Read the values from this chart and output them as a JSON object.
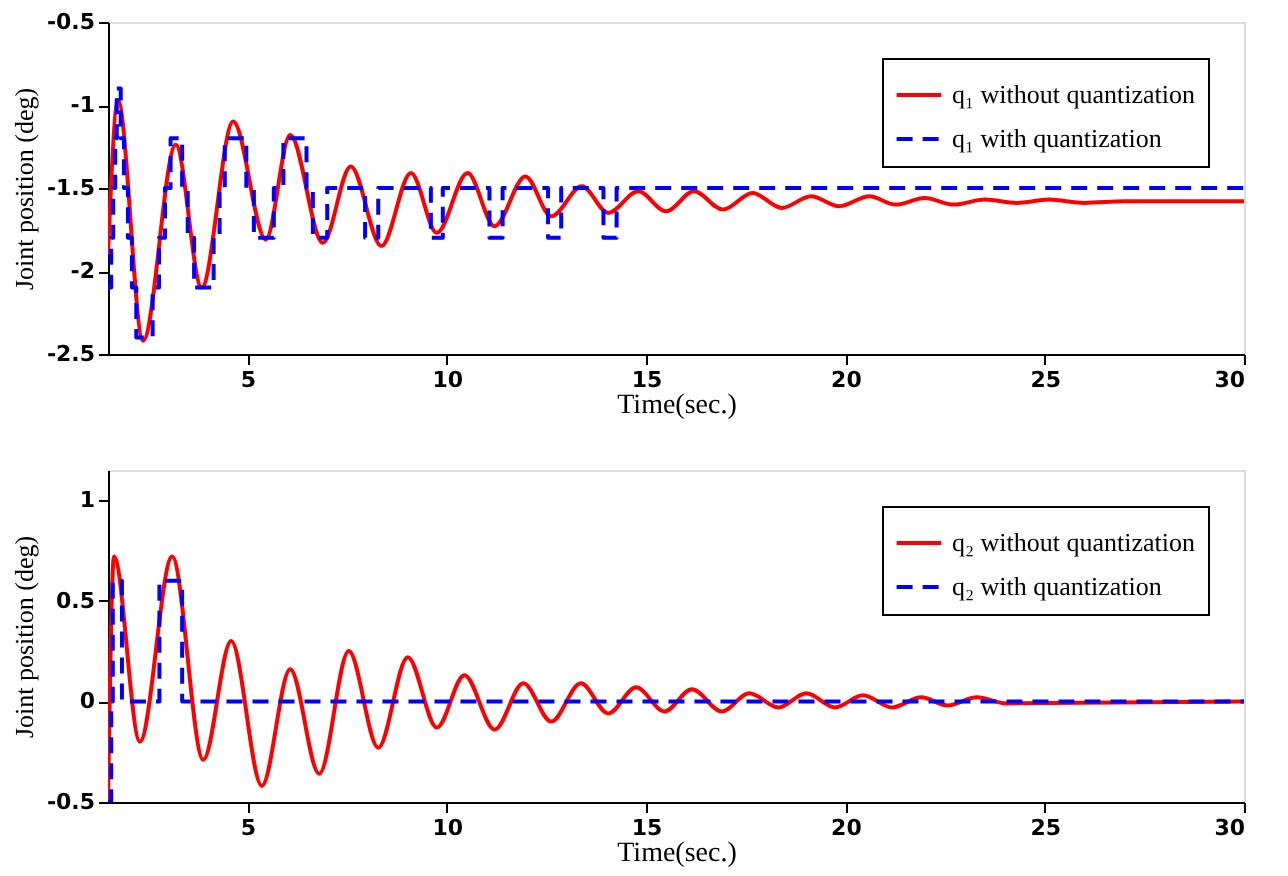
{
  "chart_data": [
    {
      "type": "line",
      "xlabel": "Time(sec.)",
      "ylabel": "Joint position (deg)",
      "xlim": [
        1.5,
        30
      ],
      "xticks": [
        5,
        10,
        15,
        20,
        25,
        30
      ],
      "ylim": [
        -2.5,
        -0.5
      ],
      "yticks": [
        -2.5,
        -2,
        -1.5,
        -1,
        -0.5
      ],
      "grid": false,
      "legend": "top right",
      "marker": "none",
      "series": [
        {
          "name": "q₁ without quantization",
          "color": "#ff0000",
          "line_style": "solid",
          "x": [
            1.5,
            1.75,
            2.38,
            3.2,
            3.85,
            4.64,
            5.46,
            6.07,
            6.89,
            7.59,
            8.36,
            9.1,
            9.75,
            10.52,
            11.2,
            11.97,
            12.62,
            13.39,
            14.05,
            14.8,
            15.5,
            16.2,
            16.93,
            17.67,
            18.4,
            19.14,
            19.84,
            20.6,
            21.26,
            21.99,
            22.72,
            23.5,
            24.3,
            25.1,
            26,
            27,
            28,
            29,
            30
          ],
          "values": [
            -1.9,
            -0.97,
            -2.42,
            -1.24,
            -2.1,
            -1.1,
            -1.81,
            -1.18,
            -1.83,
            -1.37,
            -1.85,
            -1.41,
            -1.77,
            -1.41,
            -1.73,
            -1.43,
            -1.67,
            -1.49,
            -1.65,
            -1.52,
            -1.64,
            -1.52,
            -1.63,
            -1.53,
            -1.62,
            -1.55,
            -1.61,
            -1.55,
            -1.6,
            -1.56,
            -1.6,
            -1.57,
            -1.59,
            -1.57,
            -1.59,
            -1.58,
            -1.58,
            -1.58,
            -1.58
          ]
        },
        {
          "name": "q₁ with quantization",
          "color": "#0000ff",
          "line_style": "dashed",
          "type": "step",
          "x": [
            1.5,
            1.58,
            1.63,
            1.68,
            1.72,
            1.82,
            1.9,
            2.0,
            2.1,
            2.21,
            2.62,
            2.78,
            2.93,
            3.07,
            3.36,
            3.5,
            3.66,
            4.15,
            4.3,
            4.43,
            4.97,
            5.16,
            5.66,
            5.9,
            6.48,
            6.64,
            7.0,
            7.95,
            8.28,
            9.6,
            9.9,
            11.07,
            11.4,
            12.54,
            12.87,
            13.93,
            14.26,
            30
          ],
          "values": [
            -2.1,
            -1.8,
            -1.5,
            -1.2,
            -0.9,
            -1.2,
            -1.5,
            -1.8,
            -2.1,
            -2.4,
            -2.1,
            -1.8,
            -1.5,
            -1.2,
            -1.5,
            -1.8,
            -2.1,
            -1.8,
            -1.5,
            -1.2,
            -1.5,
            -1.8,
            -1.5,
            -1.2,
            -1.5,
            -1.8,
            -1.5,
            -1.8,
            -1.5,
            -1.8,
            -1.5,
            -1.8,
            -1.5,
            -1.8,
            -1.5,
            -1.8,
            -1.5,
            -1.5
          ]
        }
      ]
    },
    {
      "type": "line",
      "xlabel": "Time(sec.)",
      "ylabel": "Joint position (deg)",
      "xlim": [
        1.5,
        30
      ],
      "xticks": [
        5,
        10,
        15,
        20,
        25,
        30
      ],
      "ylim": [
        -0.5,
        1.15
      ],
      "yticks": [
        -0.5,
        0,
        0.5,
        1
      ],
      "grid": false,
      "legend": "top right",
      "marker": "none",
      "series": [
        {
          "name": "q₂ without quantization",
          "color": "#ff0000",
          "line_style": "solid",
          "x": [
            1.5,
            1.65,
            2.3,
            3.11,
            3.89,
            4.59,
            5.36,
            6.07,
            6.8,
            7.54,
            8.28,
            9.02,
            9.75,
            10.44,
            11.2,
            11.92,
            12.62,
            13.36,
            14.05,
            14.75,
            15.46,
            16.15,
            16.9,
            17.59,
            18.32,
            19.02,
            19.74,
            20.44,
            21.17,
            21.9,
            22.56,
            23.3,
            24.03,
            30
          ],
          "values": [
            -0.5,
            0.72,
            -0.2,
            0.72,
            -0.29,
            0.3,
            -0.42,
            0.16,
            -0.36,
            0.25,
            -0.23,
            0.22,
            -0.13,
            0.13,
            -0.14,
            0.09,
            -0.1,
            0.09,
            -0.06,
            0.07,
            -0.05,
            0.06,
            -0.05,
            0.04,
            -0.03,
            0.04,
            -0.03,
            0.03,
            -0.03,
            0.02,
            -0.02,
            0.02,
            -0.01,
            0
          ]
        },
        {
          "name": "q₂ with quantization",
          "color": "#0000ff",
          "line_style": "dashed",
          "type": "step",
          "x": [
            1.5,
            1.58,
            1.62,
            1.85,
            2.79,
            3.36,
            30
          ],
          "values": [
            -0.5,
            0,
            0.6,
            0,
            0.6,
            0,
            0
          ]
        }
      ]
    }
  ]
}
